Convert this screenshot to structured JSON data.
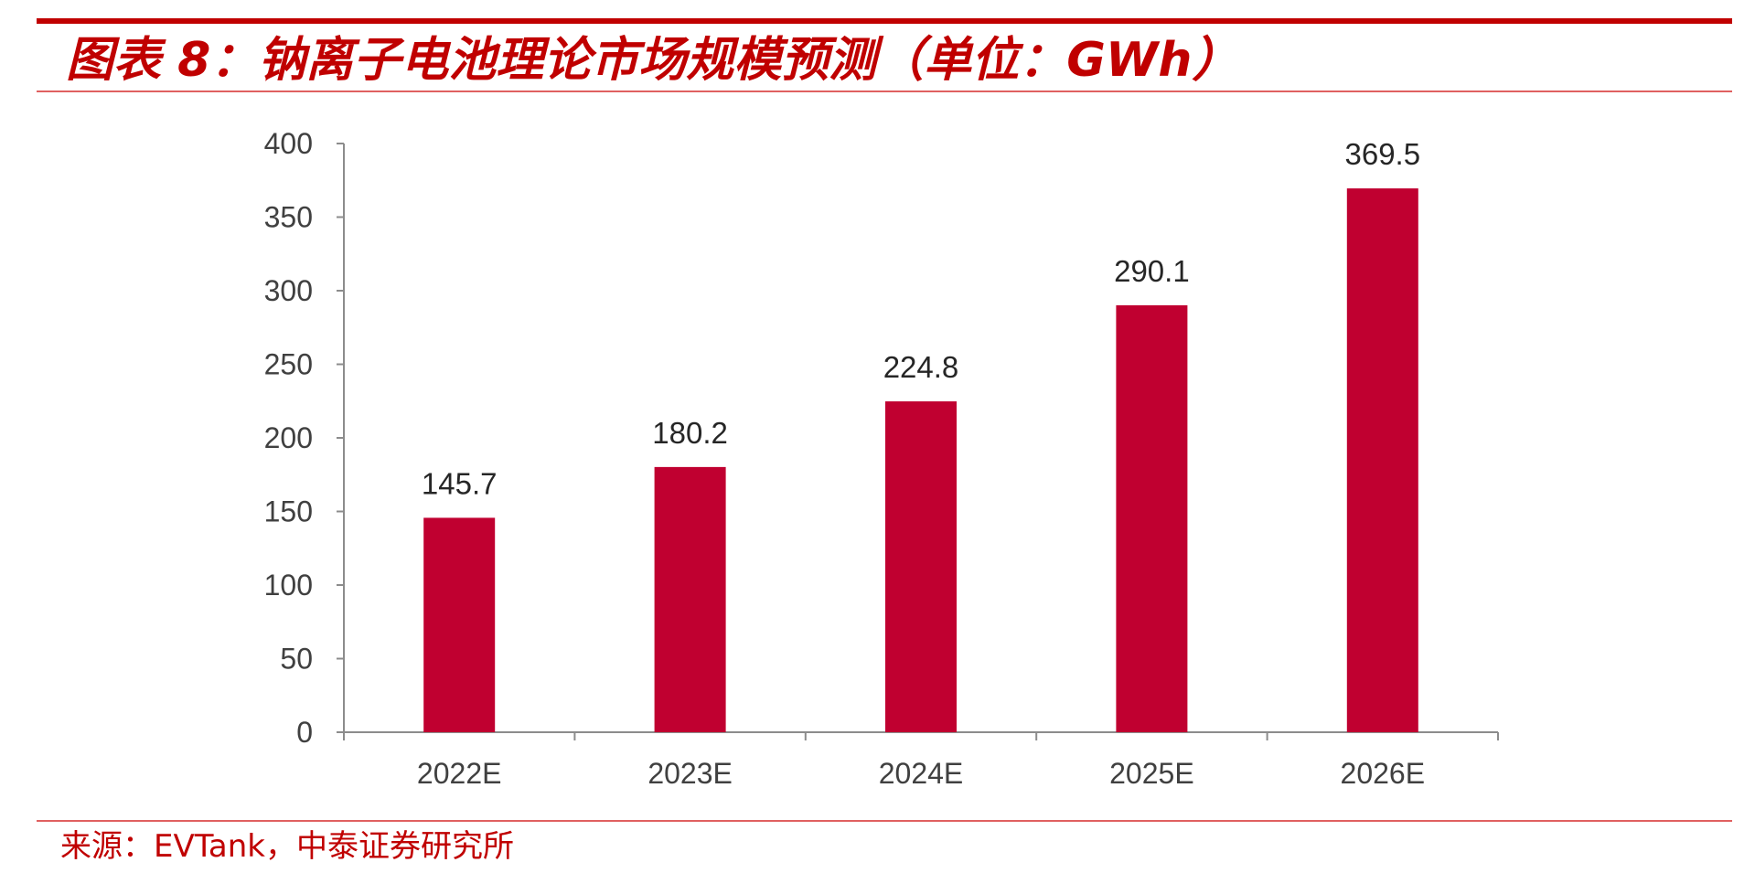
{
  "colors": {
    "accent": "#c00000",
    "bar": "#c00030",
    "axis": "#8c8c8c",
    "tick_text": "#404040"
  },
  "title": "图表 8：钠离子电池理论市场规模预测（单位：GWh）",
  "source": "来源：EVTank，中泰证券研究所",
  "chart_data": {
    "type": "bar",
    "categories": [
      "2022E",
      "2023E",
      "2024E",
      "2025E",
      "2026E"
    ],
    "values": [
      145.7,
      180.2,
      224.8,
      290.1,
      369.5
    ],
    "value_labels": [
      "145.7",
      "180.2",
      "224.8",
      "290.1",
      "369.5"
    ],
    "ylim": [
      0,
      400
    ],
    "yticks": [
      0,
      50,
      100,
      150,
      200,
      250,
      300,
      350,
      400
    ],
    "grid": false,
    "legend": "none",
    "xlabel": "",
    "ylabel": ""
  }
}
